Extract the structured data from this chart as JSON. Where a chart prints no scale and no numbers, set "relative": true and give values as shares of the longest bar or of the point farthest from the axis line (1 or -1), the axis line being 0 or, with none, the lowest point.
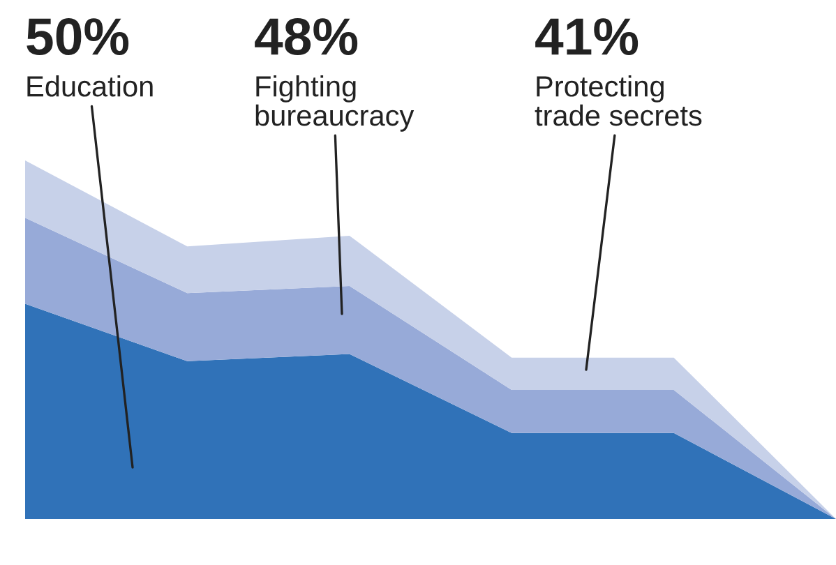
{
  "chart_data": {
    "type": "area",
    "stacked": true,
    "relative": true,
    "categories": [
      null,
      null,
      null,
      null,
      null,
      null
    ],
    "series": [
      {
        "color": "#3072b8",
        "values": [
          0.6,
          0.44,
          0.46,
          0.24,
          0.24,
          0
        ]
      },
      {
        "color": "#97aad8",
        "values": [
          0.24,
          0.19,
          0.19,
          0.12,
          0.12,
          0
        ]
      },
      {
        "color": "#c7d1e9",
        "values": [
          0.16,
          0.13,
          0.14,
          0.09,
          0.09,
          0
        ]
      }
    ],
    "annotations": [
      "50%",
      "Education",
      "48%",
      "Fighting\nbureaucracy",
      "41%",
      "Protecting\ntrade secrets"
    ]
  }
}
